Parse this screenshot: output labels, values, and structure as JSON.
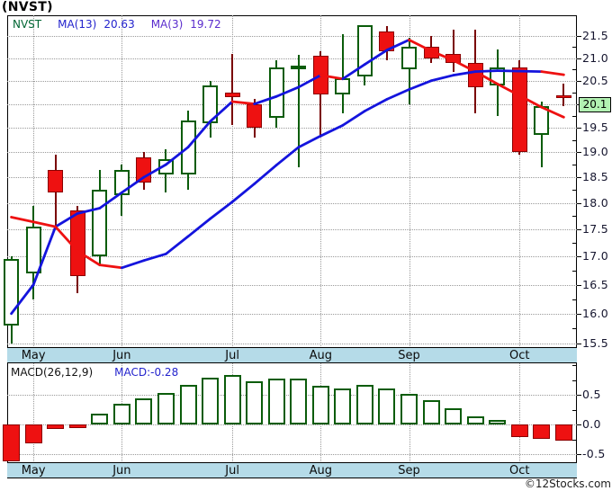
{
  "title": "(NVST)",
  "watermark": "©12Stocks.com",
  "legend": {
    "symbol": "NVST",
    "ma13_label": "MA(13)",
    "ma13_value": "20.63",
    "ma3_label": "MA(3)",
    "ma3_value": "19.72"
  },
  "macd_legend": {
    "label": "MACD(26,12,9)",
    "value_label": "MACD:-0.28"
  },
  "price_marker": {
    "label": "20.1",
    "price": 20.1
  },
  "months": [
    {
      "label": "May",
      "week": 1
    },
    {
      "label": "Jun",
      "week": 5
    },
    {
      "label": "Jul",
      "week": 10
    },
    {
      "label": "Aug",
      "week": 14
    },
    {
      "label": "Sep",
      "week": 18
    },
    {
      "label": "Oct",
      "week": 23
    }
  ],
  "colors": {
    "up": "#0a5c0a",
    "down_fill": "#ee1111",
    "down_border": "#8b0000",
    "down_wick": "#7a0505",
    "ma_rising": "#1414dd",
    "ma_falling": "#ee1111",
    "band_bg": "#b5dbe8",
    "grid": "#9a9a9a",
    "axis_text": "#15152e",
    "marker_bg": "#b2f1b2",
    "legend_symbol": "#006633",
    "legend_ma13": "#2323cd",
    "legend_ma3": "#5a2ccd",
    "macd_label": "#111111",
    "macd_value": "#2323cd"
  },
  "chart_data": [
    {
      "type": "candlestick",
      "title": "(NVST)",
      "timeframe": "weekly",
      "price_scale": "log",
      "y_axis": {
        "min_label": 15.5,
        "max_label": 21.5,
        "label_step": 0.5,
        "minor_tick_step": 0.25,
        "hidden_label_under_marker": 20.0
      },
      "last_price": 20.1,
      "candles": [
        {
          "o": 15.8,
          "h": 17.0,
          "l": 15.5,
          "c": 16.95
        },
        {
          "o": 16.7,
          "h": 17.95,
          "l": 16.25,
          "c": 17.55
        },
        {
          "o": 18.65,
          "h": 18.95,
          "l": 17.5,
          "c": 18.2
        },
        {
          "o": 17.85,
          "h": 17.95,
          "l": 16.35,
          "c": 16.65
        },
        {
          "o": 17.0,
          "h": 18.65,
          "l": 16.85,
          "c": 18.25
        },
        {
          "o": 18.15,
          "h": 18.75,
          "l": 17.75,
          "c": 18.65
        },
        {
          "o": 18.9,
          "h": 19.0,
          "l": 18.25,
          "c": 18.4
        },
        {
          "o": 18.55,
          "h": 19.05,
          "l": 18.2,
          "c": 18.85
        },
        {
          "o": 18.55,
          "h": 19.85,
          "l": 18.25,
          "c": 19.65
        },
        {
          "o": 19.6,
          "h": 20.5,
          "l": 19.3,
          "c": 20.4
        },
        {
          "o": 20.25,
          "h": 21.1,
          "l": 19.55,
          "c": 20.15
        },
        {
          "o": 20.0,
          "h": 20.1,
          "l": 19.3,
          "c": 19.5
        },
        {
          "o": 19.7,
          "h": 20.95,
          "l": 19.5,
          "c": 20.8
        },
        {
          "o": 20.78,
          "h": 21.07,
          "l": 18.7,
          "c": 20.84
        },
        {
          "o": 21.05,
          "h": 21.15,
          "l": 19.3,
          "c": 20.2
        },
        {
          "o": 20.2,
          "h": 21.55,
          "l": 19.8,
          "c": 20.55
        },
        {
          "o": 20.6,
          "h": 21.75,
          "l": 20.4,
          "c": 21.74
        },
        {
          "o": 21.6,
          "h": 21.72,
          "l": 20.95,
          "c": 21.15
        },
        {
          "o": 20.75,
          "h": 21.45,
          "l": 20.0,
          "c": 21.25
        },
        {
          "o": 21.25,
          "h": 21.5,
          "l": 20.9,
          "c": 21.0
        },
        {
          "o": 21.1,
          "h": 21.65,
          "l": 20.7,
          "c": 20.9
        },
        {
          "o": 20.9,
          "h": 21.65,
          "l": 19.8,
          "c": 20.35
        },
        {
          "o": 20.4,
          "h": 21.2,
          "l": 19.75,
          "c": 20.8
        },
        {
          "o": 20.8,
          "h": 20.95,
          "l": 18.95,
          "c": 19.0
        },
        {
          "o": 19.35,
          "h": 20.05,
          "l": 18.7,
          "c": 19.95
        },
        {
          "o": 20.18,
          "h": 20.44,
          "l": 19.96,
          "c": 20.12
        }
      ],
      "series": [
        {
          "name": "MA(13)",
          "last": 20.63,
          "values": [
            17.73,
            17.64,
            17.55,
            17.1,
            16.85,
            16.8,
            16.93,
            17.05,
            17.37,
            17.7,
            18.02,
            18.37,
            18.74,
            19.1,
            19.33,
            19.55,
            19.85,
            20.1,
            20.31,
            20.5,
            20.62,
            20.7,
            20.72,
            20.71,
            20.7,
            20.63
          ]
        },
        {
          "name": "MA(3)",
          "last": 19.72,
          "values": [
            16.0,
            16.5,
            17.55,
            17.8,
            17.9,
            18.2,
            18.5,
            18.75,
            19.1,
            19.63,
            20.05,
            20.0,
            20.16,
            20.36,
            20.62,
            20.54,
            20.86,
            21.18,
            21.41,
            21.16,
            20.95,
            20.7,
            20.43,
            20.18,
            19.93,
            19.72
          ]
        }
      ]
    },
    {
      "type": "bar",
      "name": "MACD(26,12,9)",
      "last": -0.28,
      "y_axis": {
        "labels": [
          0.5,
          0.0,
          -0.5
        ],
        "minor_ticks": [
          1.0,
          0.75,
          0.25,
          -0.25
        ]
      },
      "values": [
        -0.62,
        -0.32,
        -0.07,
        -0.06,
        0.18,
        0.35,
        0.44,
        0.53,
        0.66,
        0.79,
        0.84,
        0.72,
        0.78,
        0.78,
        0.65,
        0.61,
        0.67,
        0.6,
        0.51,
        0.41,
        0.28,
        0.14,
        0.08,
        -0.21,
        -0.24,
        -0.28
      ]
    }
  ]
}
